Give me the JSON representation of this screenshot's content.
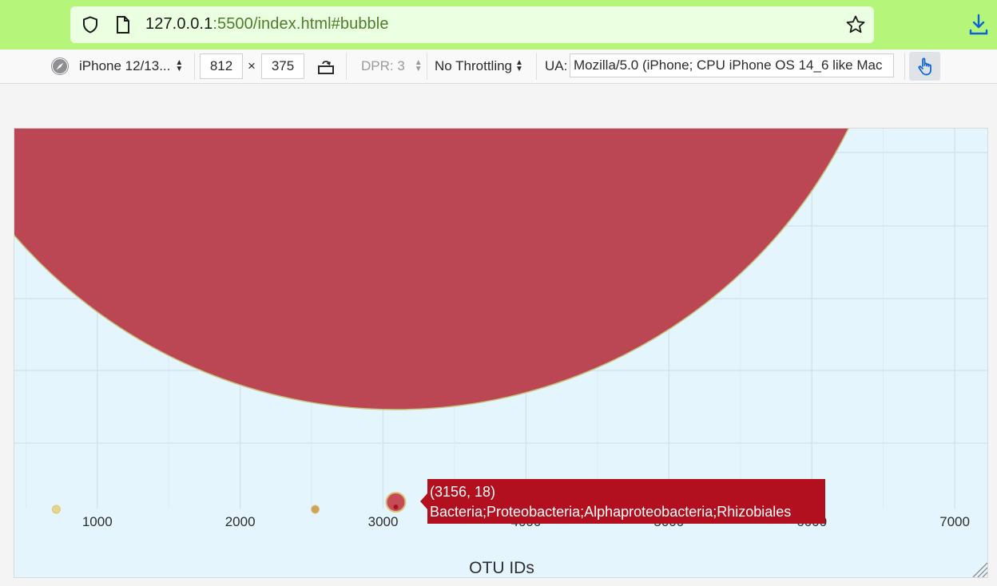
{
  "browser": {
    "url_host": "127.0.0.1",
    "url_rest": ":5500/index.html#bubble"
  },
  "rdm_toolbar": {
    "device": "iPhone 12/13...",
    "width": "812",
    "times": "×",
    "height": "375",
    "dpr": "DPR: 3",
    "throttling": "No Throttling",
    "ua_label": "UA:",
    "ua_value": "Mozilla/5.0 (iPhone; CPU iPhone OS 14_6 like Mac"
  },
  "chart_data": {
    "type": "scatter",
    "xlabel": "OTU IDs",
    "x_ticks": [
      "1000",
      "2000",
      "3000",
      "4000",
      "5000",
      "6000",
      "7000"
    ],
    "xlim": [
      420,
      7240
    ],
    "bubbles": [
      {
        "x": 3156,
        "y": 18,
        "color": "#bc4754",
        "large": true
      },
      {
        "x": 3156,
        "y": 18,
        "color": "#c54b56"
      },
      {
        "x": 713,
        "y": 2,
        "color": "#e7d58c"
      },
      {
        "x": 2525,
        "y": 2,
        "color": "#d0a05c"
      }
    ],
    "tooltip": {
      "line1": "(3156, 18)",
      "line2": "Bacteria;Proteobacteria;Alphaproteobacteria;Rhizobiales",
      "color": "#b3101f"
    }
  }
}
